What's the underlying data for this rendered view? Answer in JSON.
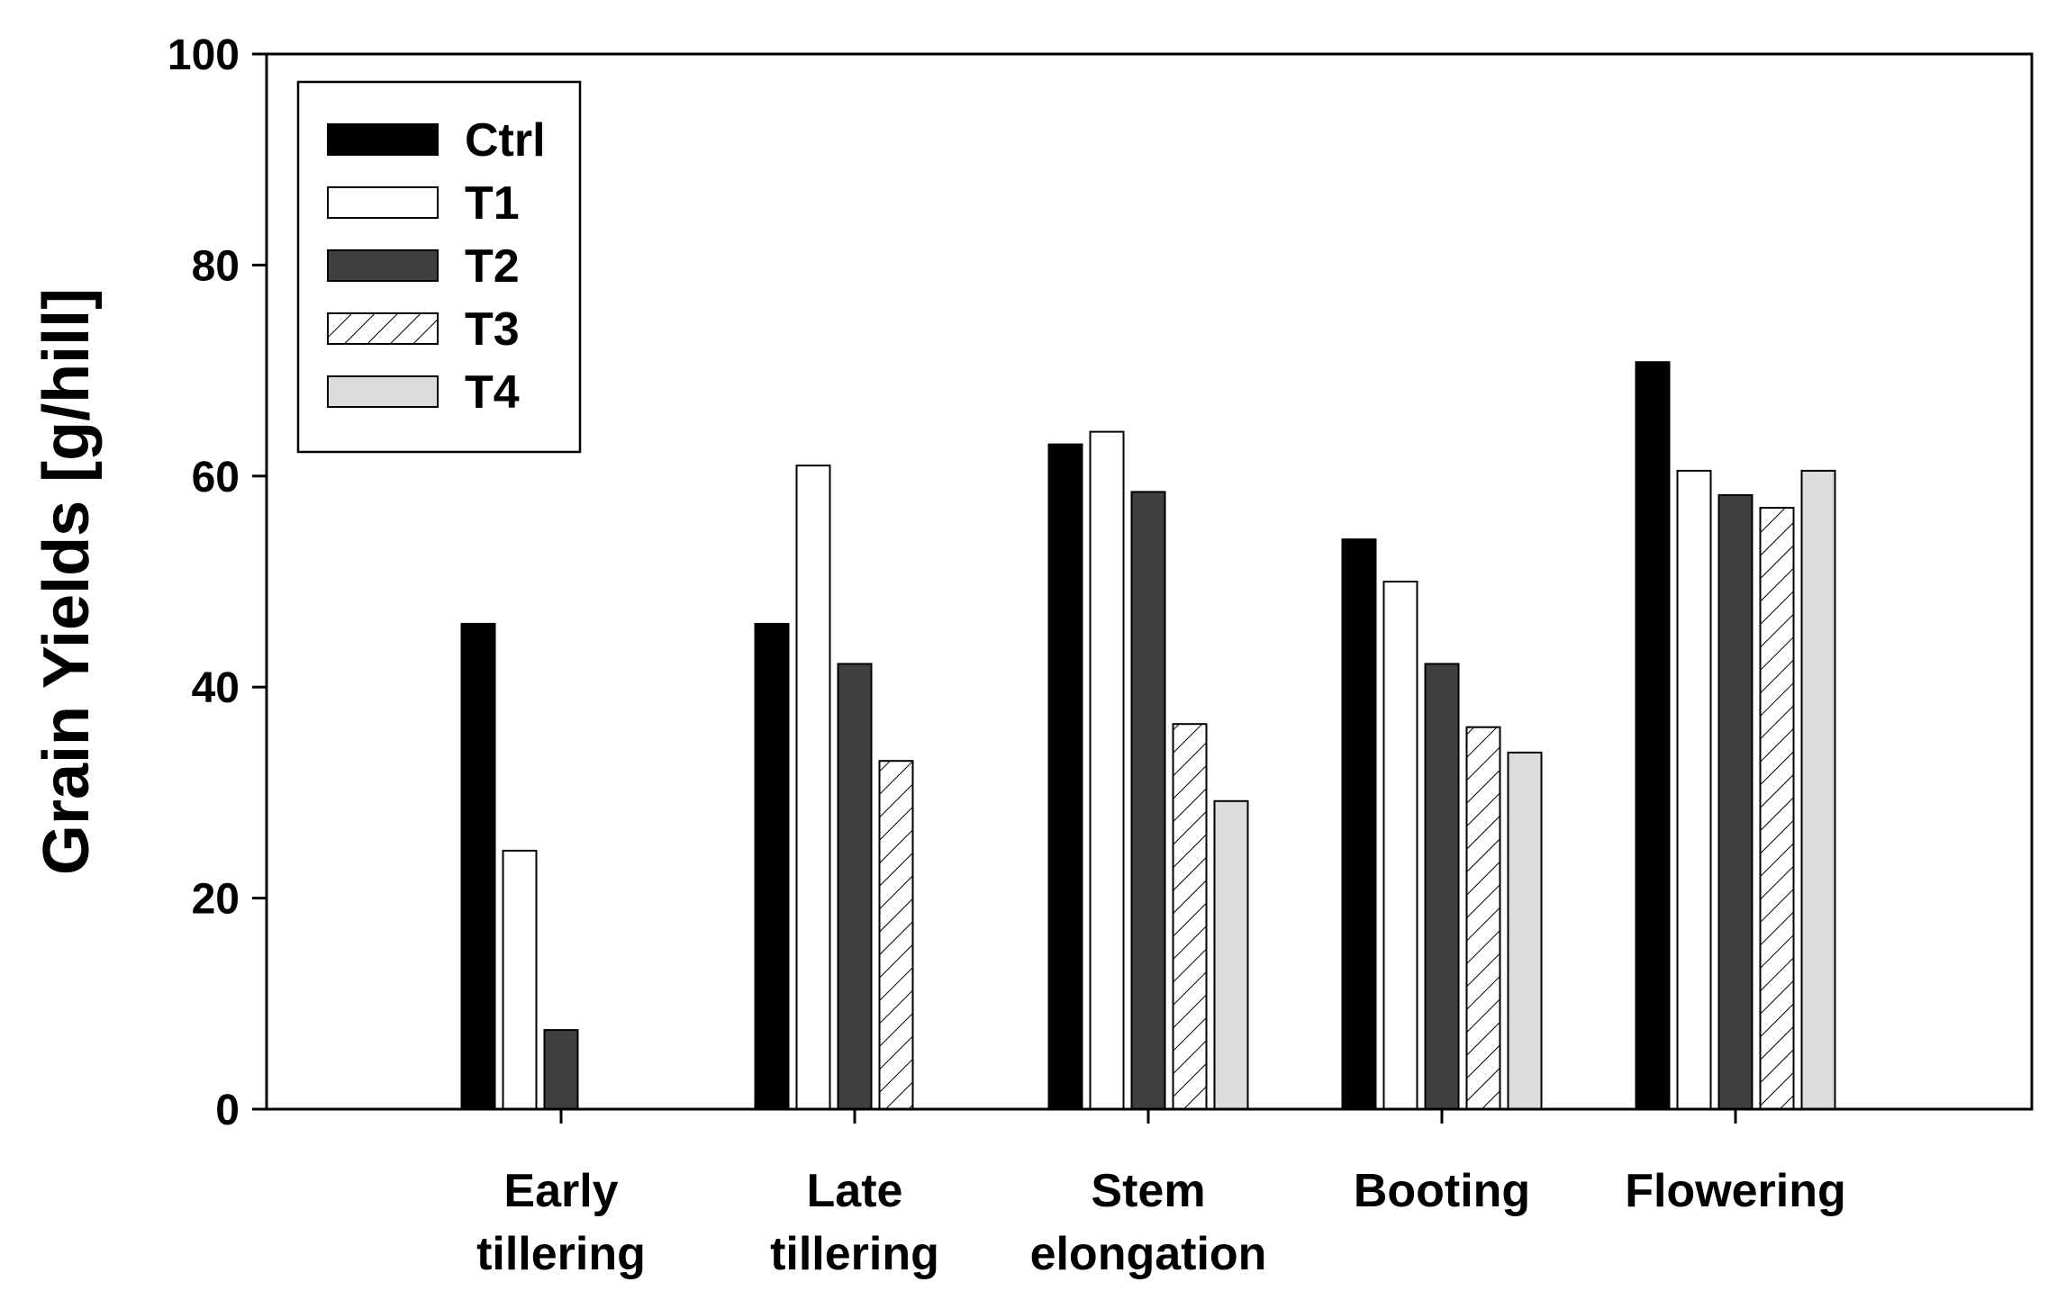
{
  "chart_data": {
    "type": "bar",
    "title": "",
    "xlabel": "",
    "ylabel": "Grain Yields [g/hill]",
    "ylim": [
      0,
      100
    ],
    "yticks": [
      0,
      20,
      40,
      60,
      80,
      100
    ],
    "ytick_labels": [
      "0",
      "20",
      "40",
      "60",
      "80",
      "100"
    ],
    "grid": false,
    "legend_position": "top-left",
    "categories": [
      [
        "Early",
        "tillering"
      ],
      [
        "Late",
        "tillering"
      ],
      [
        "Stem",
        "elongation"
      ],
      [
        "Booting"
      ],
      [
        "Flowering"
      ]
    ],
    "series": [
      {
        "name": "Ctrl",
        "fill": "#000000",
        "pattern": "solid",
        "values": [
          46,
          46,
          63,
          54,
          70.8
        ]
      },
      {
        "name": "T1",
        "fill": "#ffffff",
        "pattern": "solid",
        "values": [
          24.5,
          61,
          64.2,
          50,
          60.5
        ]
      },
      {
        "name": "T2",
        "fill": "#404040",
        "pattern": "solid",
        "values": [
          7.5,
          42.2,
          58.5,
          42.2,
          58.2
        ]
      },
      {
        "name": "T3",
        "fill": "#ffffff",
        "pattern": "hatch",
        "values": [
          0,
          33,
          36.5,
          36.2,
          57
        ]
      },
      {
        "name": "T4",
        "fill": "#dcdcdc",
        "pattern": "solid",
        "values": [
          0,
          0,
          29.2,
          33.8,
          60.5
        ]
      }
    ]
  }
}
